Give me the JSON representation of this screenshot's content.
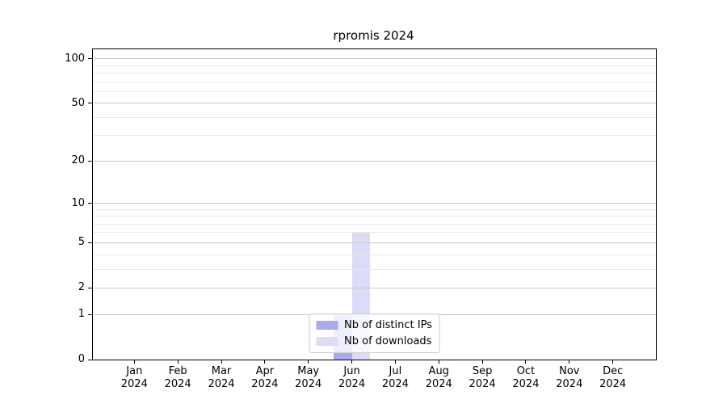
{
  "figure": {
    "title": "rpromis 2024"
  },
  "chart_data": {
    "type": "bar",
    "title": "rpromis 2024",
    "x_categories": [
      "Jan",
      "Feb",
      "Mar",
      "Apr",
      "May",
      "Jun",
      "Jul",
      "Aug",
      "Sep",
      "Oct",
      "Nov",
      "Dec"
    ],
    "x_year": "2024",
    "series": [
      {
        "name": "Nb of distinct IPs",
        "color": "#a9a9ef",
        "values": [
          0,
          0,
          0,
          0,
          0,
          1,
          0,
          0,
          0,
          0,
          0,
          0
        ]
      },
      {
        "name": "Nb of downloads",
        "color": "#dcdcf8",
        "values": [
          0,
          0,
          0,
          0,
          0,
          6,
          0,
          0,
          0,
          0,
          0,
          0
        ]
      }
    ],
    "y_axis": {
      "scale": "log10(value+1)",
      "tick_values": [
        0,
        1,
        2,
        5,
        10,
        20,
        50,
        100
      ],
      "minor_gridline_values": [
        3,
        4,
        6,
        7,
        8,
        9,
        30,
        40,
        60,
        70,
        80,
        90
      ],
      "ylim": [
        0,
        116
      ]
    },
    "legend": {
      "position": "lower center",
      "entries": [
        "Nb of distinct IPs",
        "Nb of downloads"
      ]
    },
    "colors": {
      "major_grid": "#c9c9c9",
      "minor_grid": "#e9e9e9",
      "spine": "#000000",
      "legend_border": "#cccccc",
      "text": "#000000"
    },
    "grid": true
  }
}
